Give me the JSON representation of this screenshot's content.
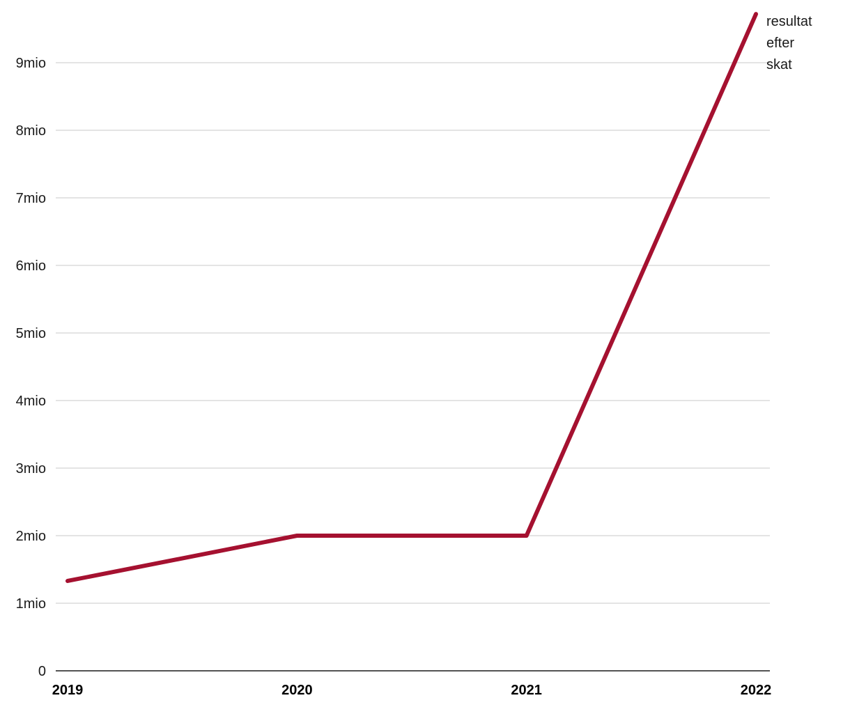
{
  "chart_data": {
    "type": "line",
    "title": "",
    "xlabel": "",
    "ylabel": "",
    "categories": [
      "2019",
      "2020",
      "2021",
      "2022"
    ],
    "series": [
      {
        "name": "resultat efter skat",
        "values": [
          1.33,
          2.0,
          2.0,
          9.72
        ]
      }
    ],
    "unit": "mio",
    "ylim": [
      0,
      10
    ],
    "y_ticks": [
      0,
      1,
      2,
      3,
      4,
      5,
      6,
      7,
      8,
      9
    ],
    "y_tick_labels": [
      "0",
      "1mio",
      "2mio",
      "3mio",
      "4mio",
      "5mio",
      "6mio",
      "7mio",
      "8mio",
      "9mio"
    ],
    "grid": true,
    "legend_position": "annotation at line end, top right",
    "annotation_lines": [
      "resultat",
      "efter",
      "skat"
    ],
    "colors": {
      "line": "#a51130",
      "grid": "#c9c9c9",
      "axis": "#1a1a1a",
      "text": "#1a1a1a"
    }
  }
}
